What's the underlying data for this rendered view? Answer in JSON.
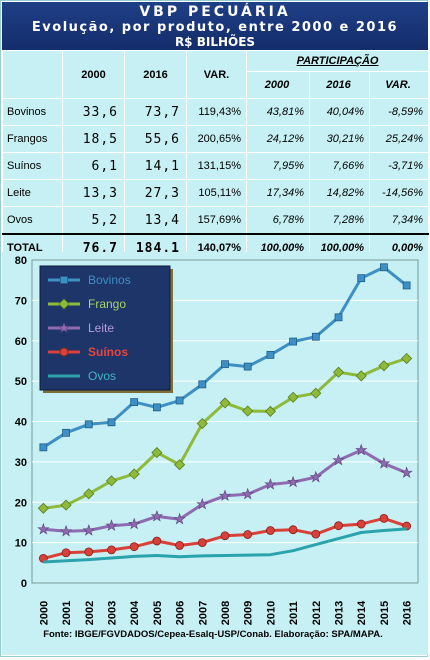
{
  "header": {
    "title": "VBP PECUÁRIA",
    "subtitle": "Evolução, por produto, entre 2000 e 2016",
    "unit": "R$ BILHÕES"
  },
  "table": {
    "participacao_label": "PARTICIPAÇÃO",
    "headers": [
      "2000",
      "2016",
      "VAR.",
      "2000",
      "2016",
      "VAR."
    ],
    "rows": [
      {
        "label": "Bovinos",
        "v2000": "33,6",
        "v2016": "73,7",
        "var": "119,43%",
        "p2000": "43,81%",
        "p2016": "40,04%",
        "pvar": "-8,59%"
      },
      {
        "label": "Frangos",
        "v2000": "18,5",
        "v2016": "55,6",
        "var": "200,65%",
        "p2000": "24,12%",
        "p2016": "30,21%",
        "pvar": "25,24%"
      },
      {
        "label": "Suínos",
        "v2000": "6,1",
        "v2016": "14,1",
        "var": "131,15%",
        "p2000": "7,95%",
        "p2016": "7,66%",
        "pvar": "-3,71%"
      },
      {
        "label": "Leite",
        "v2000": "13,3",
        "v2016": "27,3",
        "var": "105,11%",
        "p2000": "17,34%",
        "p2016": "14,82%",
        "pvar": "-14,56%"
      },
      {
        "label": "Ovos",
        "v2000": "5,2",
        "v2016": "13,4",
        "var": "157,69%",
        "p2000": "6,78%",
        "p2016": "7,28%",
        "pvar": "7,34%"
      }
    ],
    "total": {
      "label": "TOTAL",
      "v2000": "76,7",
      "v2016": "184,1",
      "var": "140,07%",
      "p2000": "100,00%",
      "p2016": "100,00%",
      "pvar": "0,00%"
    }
  },
  "chart_data": {
    "type": "line",
    "x": [
      "2000",
      "2001",
      "2002",
      "2003",
      "2004",
      "2005",
      "2006",
      "2007",
      "2008",
      "2009",
      "2010",
      "2011",
      "2012",
      "2013",
      "2014",
      "2015",
      "2016"
    ],
    "ylim": [
      0,
      80
    ],
    "yticks": [
      0,
      10,
      20,
      30,
      40,
      50,
      60,
      70,
      80
    ],
    "grid": true,
    "legend_position": "top-left",
    "series": [
      {
        "name": "Bovinos",
        "color": "#3d8fc4",
        "marker": "square",
        "values": [
          33.6,
          37.2,
          39.3,
          39.8,
          44.8,
          43.5,
          45.2,
          49.2,
          54.2,
          53.6,
          56.5,
          59.8,
          61.0,
          65.8,
          75.5,
          78.2,
          73.7
        ]
      },
      {
        "name": "Frango",
        "color": "#8dba3a",
        "marker": "diamond",
        "values": [
          18.5,
          19.3,
          22.1,
          25.3,
          27.0,
          32.3,
          29.3,
          39.5,
          44.6,
          42.6,
          42.5,
          46.0,
          47.0,
          52.2,
          51.3,
          53.8,
          55.6
        ]
      },
      {
        "name": "Leite",
        "color": "#8e6bb0",
        "marker": "star",
        "values": [
          13.3,
          12.8,
          13.0,
          14.2,
          14.6,
          16.5,
          15.8,
          19.5,
          21.6,
          22.0,
          24.4,
          25.0,
          26.2,
          30.4,
          32.9,
          29.6,
          27.3
        ]
      },
      {
        "name": "Suínos",
        "color": "#d8403a",
        "marker": "circle",
        "values": [
          6.1,
          7.5,
          7.7,
          8.2,
          9.0,
          10.4,
          9.3,
          10.0,
          11.7,
          12.0,
          13.0,
          13.2,
          12.1,
          14.2,
          14.6,
          16.0,
          14.1
        ]
      },
      {
        "name": "Ovos",
        "color": "#2aa3ad",
        "marker": "none",
        "values": [
          5.2,
          5.5,
          5.8,
          6.2,
          6.6,
          6.8,
          6.5,
          6.7,
          6.8,
          6.9,
          7.0,
          8.0,
          9.5,
          11.0,
          12.5,
          13.0,
          13.4
        ]
      }
    ]
  },
  "source": "Fonte: IBGE/FGVDADOS/Cepea-Esalq-USP/Conab. Elaboração: SPA/MAPA."
}
